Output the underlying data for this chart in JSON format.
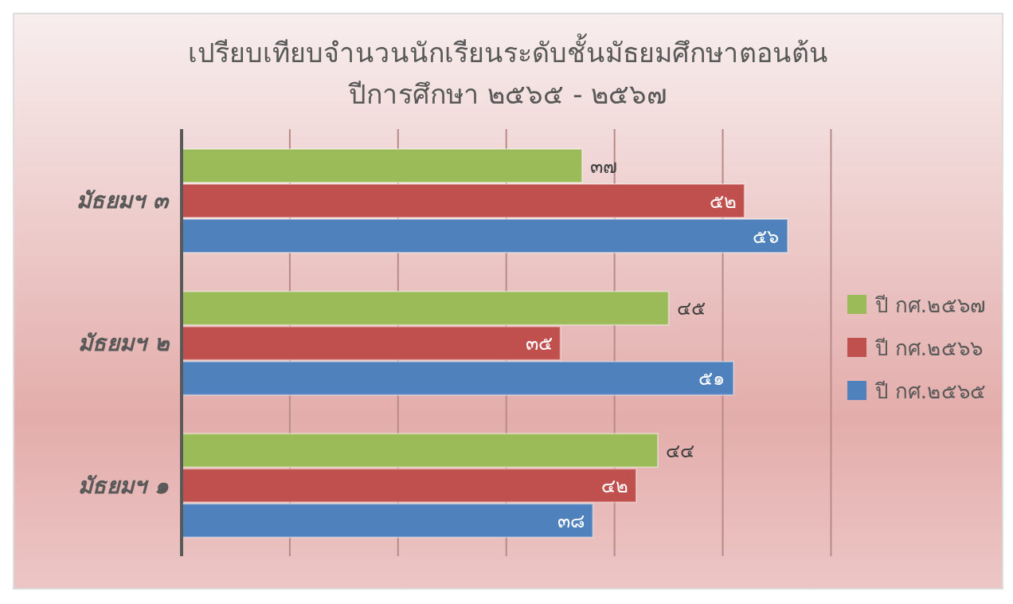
{
  "chart_data": {
    "type": "bar",
    "orientation": "horizontal",
    "title": "เปรียบเทียบจำนวนนักเรียนระดับชั้นมัธยมศึกษาตอนต้น",
    "subtitle": "ปีการศึกษา ๒๕๖๕ - ๒๕๖๗",
    "categories": [
      "มัธยมฯ ๓",
      "มัธยมฯ ๒",
      "มัธยมฯ ๑"
    ],
    "series": [
      {
        "name": "ปี กศ.๒๕๖๗",
        "color": "#9bbb59",
        "values": [
          37,
          45,
          44
        ],
        "value_labels": [
          "๓๗",
          "๔๕",
          "๔๔"
        ]
      },
      {
        "name": "ปี กศ.๒๕๖๖",
        "color": "#c0504d",
        "values": [
          52,
          35,
          42
        ],
        "value_labels": [
          "๕๒",
          "๓๕",
          "๔๒"
        ]
      },
      {
        "name": "ปี กศ.๒๕๖๕",
        "color": "#4f81bd",
        "values": [
          56,
          51,
          38
        ],
        "value_labels": [
          "๕๖",
          "๕๑",
          "๓๘"
        ]
      }
    ],
    "xlim": [
      0,
      60
    ],
    "xticks": [
      {
        "value": 0,
        "label": null
      },
      {
        "value": 10,
        "label": null
      },
      {
        "value": 20,
        "label": null
      },
      {
        "value": 30,
        "label": null
      },
      {
        "value": 40,
        "label": null
      },
      {
        "value": 50,
        "label": null
      },
      {
        "value": 60,
        "label": null
      }
    ],
    "tick_labels": "y",
    "grid": "x",
    "legend": "right"
  }
}
